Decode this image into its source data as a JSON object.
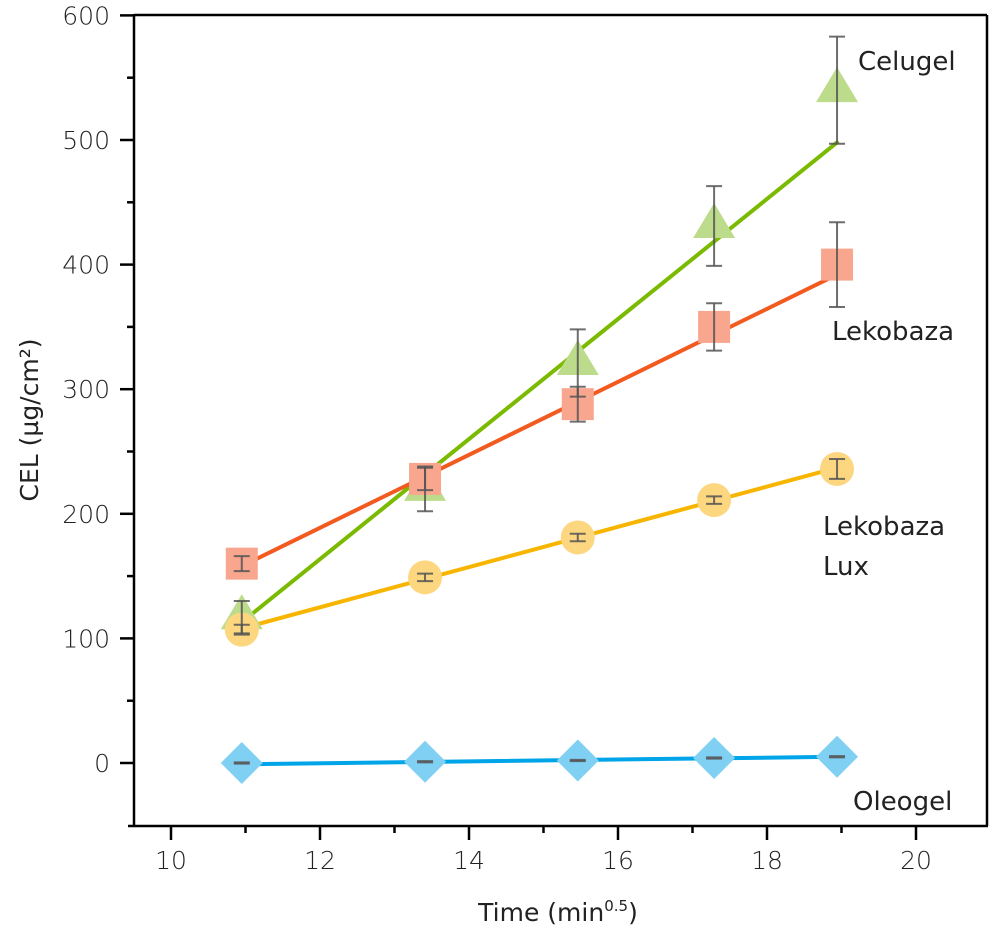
{
  "chart_data": {
    "type": "scatter",
    "xlabel": "Time (min",
    "xlabel_sup": "0.5",
    "xlabel_close": ")",
    "ylabel": "CEL (µg/cm²)",
    "xlim": [
      9.42,
      21.0
    ],
    "ylim": [
      -50,
      600
    ],
    "xticks": [
      10,
      12,
      14,
      16,
      18,
      20
    ],
    "xtick_labels": [
      "10",
      "12",
      "14",
      "16",
      "18",
      "20"
    ],
    "xminor": [
      11,
      13,
      15,
      17,
      19
    ],
    "yticks": [
      0,
      100,
      200,
      300,
      400,
      500,
      600
    ],
    "ytick_labels": [
      "0",
      "100",
      "200",
      "300",
      "400",
      "500",
      "600"
    ],
    "yminor": [
      50,
      150,
      250,
      350,
      450,
      550
    ],
    "grid": false,
    "x": [
      10.95,
      13.41,
      15.46,
      17.29,
      18.94
    ],
    "series": [
      {
        "name": "Celugel",
        "label_lines": [
          "Celugel"
        ],
        "marker": "triangle",
        "marker_color": "#bcdc8c",
        "line_color": "#7aba00",
        "values": [
          117,
          220,
          321,
          431,
          540
        ],
        "errors": [
          13,
          18,
          27,
          32,
          43
        ],
        "fit": [
          113,
          498
        ]
      },
      {
        "name": "Lekobaza",
        "label_lines": [
          "Lekobaza"
        ],
        "marker": "square",
        "marker_color": "#f9a68f",
        "line_color": "#f25a1f",
        "values": [
          160,
          228,
          288,
          350,
          400
        ],
        "errors": [
          6,
          9,
          14,
          19,
          34
        ],
        "fit": [
          158,
          392
        ]
      },
      {
        "name": "Lekobaza Lux",
        "label_lines": [
          "Lekobaza",
          "Lux"
        ],
        "marker": "circle",
        "marker_color": "#fdd680",
        "line_color": "#f8b500",
        "values": [
          107,
          149,
          181,
          211,
          236
        ],
        "errors": [
          4,
          3,
          3,
          3,
          8
        ],
        "fit": [
          108,
          237
        ]
      },
      {
        "name": "Oleogel",
        "label_lines": [
          "Oleogel"
        ],
        "marker": "diamond",
        "marker_color": "#80d0f4",
        "line_color": "#00a4e8",
        "values": [
          0,
          1,
          2,
          4,
          5
        ],
        "errors": [
          0.5,
          0.5,
          0.5,
          0.5,
          0.5
        ],
        "fit": [
          -1,
          5
        ]
      }
    ]
  }
}
